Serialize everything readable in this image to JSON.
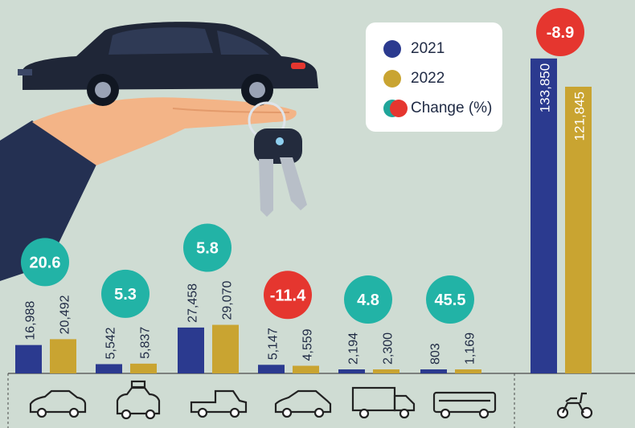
{
  "legend": {
    "label_2021": "2021",
    "label_2022": "2022",
    "label_change": "Change (%)"
  },
  "colors": {
    "y2021": "#2b3a8f",
    "y2022": "#c9a431",
    "positive": "#22b3a6",
    "negative": "#e5362f",
    "background": "#cfdcd3"
  },
  "chart_data": {
    "type": "bar",
    "categories": [
      "car-icon",
      "taxi-icon",
      "pickup-truck-icon",
      "hatchback-icon",
      "truck-icon",
      "bus-icon",
      "scooter-icon"
    ],
    "series": [
      {
        "name": "2021",
        "values": [
          16988,
          5542,
          27458,
          5147,
          2194,
          803,
          133850
        ]
      },
      {
        "name": "2022",
        "values": [
          20492,
          5837,
          29070,
          4559,
          2300,
          1169,
          121845
        ]
      }
    ],
    "value_labels_2021": [
      "16,988",
      "5,542",
      "27,458",
      "5,147",
      "2,194",
      "803",
      "133,850"
    ],
    "value_labels_2022": [
      "20,492",
      "5,837",
      "29,070",
      "4,559",
      "2,300",
      "1,169",
      "121,845"
    ],
    "change_percent": [
      20.6,
      5.3,
      5.8,
      -11.4,
      4.8,
      45.5,
      -8.9
    ],
    "change_labels": [
      "20.6",
      "5.3",
      "5.8",
      "-11.4",
      "4.8",
      "45.5",
      "-8.9"
    ],
    "legend_position": "top-right",
    "grid": false
  }
}
